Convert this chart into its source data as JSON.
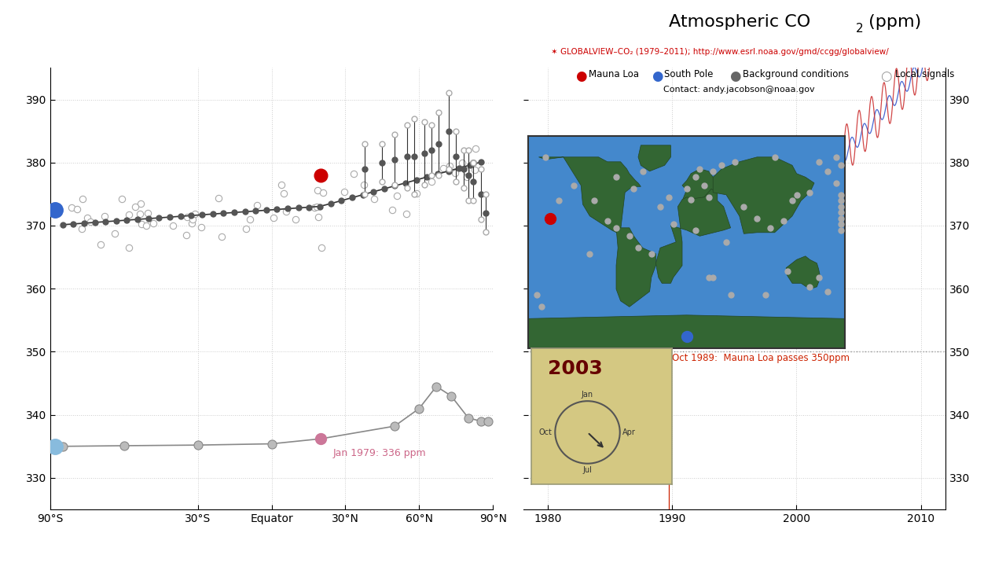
{
  "title": "Atmospheric CO₂ (ppm)",
  "subtitle": "GLOBALVIEW–CO₂ (1979–2011); http://www.esrl.noaa.gov/gmd/ccgg/globalview/",
  "contact": "Contact: andy.jacobson@noaa.gov",
  "legend_items": [
    "Mauna Loa",
    "South Pole",
    "Background conditions",
    "Local signals"
  ],
  "legend_colors": [
    "#cc0000",
    "#0033cc",
    "#555555",
    "#aaaaaa"
  ],
  "ylim": [
    325,
    395
  ],
  "yticks": [
    330,
    340,
    350,
    360,
    370,
    380,
    390
  ],
  "left_xlim": [
    -90,
    90
  ],
  "left_xticks": [
    -90,
    -30,
    0,
    30,
    60,
    90
  ],
  "left_xticklabels": [
    "90°S",
    "30°S",
    "Equator",
    "30°N",
    "60°N",
    "90°N"
  ],
  "right_xlim": [
    1978,
    2012
  ],
  "right_xticks": [
    1980,
    1990,
    2000,
    2010
  ],
  "right_xticklabels": [
    "1980",
    "1990",
    "2000",
    "2010"
  ],
  "annotation_1979": "Jan 1979: 336 ppm",
  "annotation_1989": "Oct 1989:  Mauna Loa passes 350ppm",
  "annotation_year": "2003",
  "bg_color": "#ffffff",
  "grid_color": "#cccccc",
  "mauna_loa_color": "#cc0000",
  "south_pole_color": "#3366cc",
  "pink_annotation_color": "#cc6688",
  "red_annotation_color": "#cc2200",
  "map_bg_color": "#4488cc",
  "map_land_color": "#336633",
  "clock_box_color": "#d4c882"
}
